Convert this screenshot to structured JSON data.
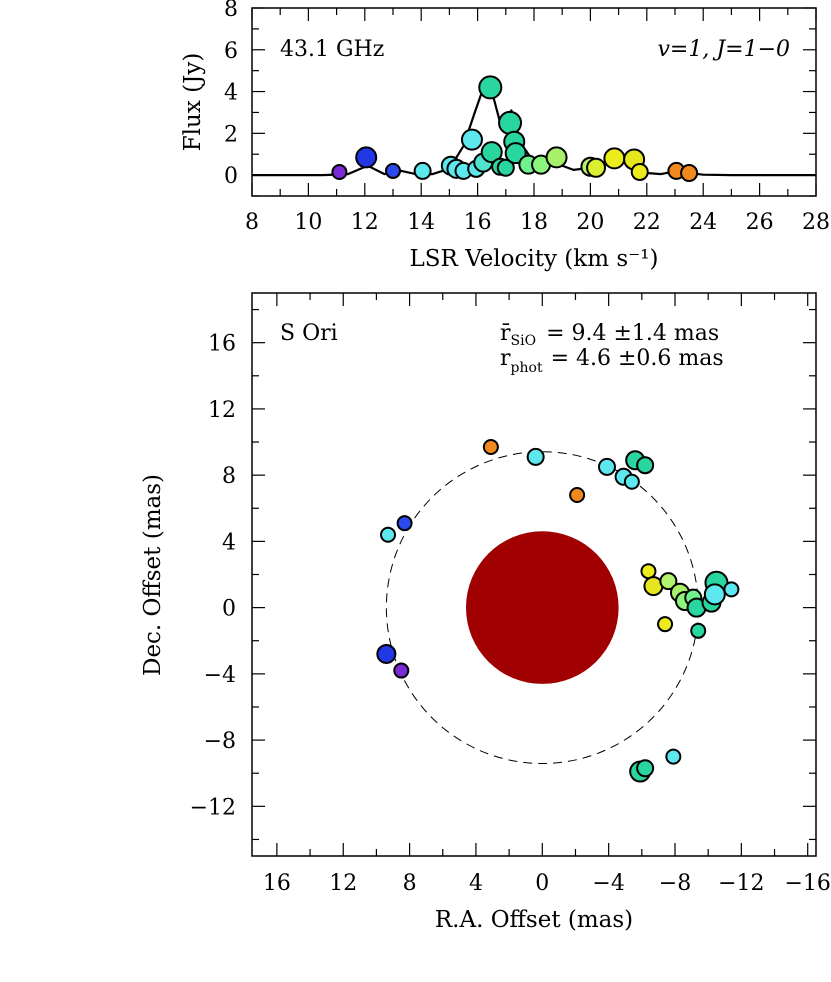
{
  "chart_data": [
    {
      "type": "line",
      "panel": "spectrum",
      "xlabel": "LSR Velocity (km s⁻¹)",
      "ylabel": "Flux (Jy)",
      "xlim": [
        8,
        28
      ],
      "ylim": [
        -1,
        8
      ],
      "xticks": [
        8,
        10,
        12,
        14,
        16,
        18,
        20,
        22,
        24,
        26,
        28
      ],
      "yticks": [
        0,
        2,
        4,
        6,
        8
      ],
      "annotation_left": "43.1 GHz",
      "annotation_right": "v=1, J=1−0",
      "spectrum": {
        "x": [
          8,
          10.5,
          11.4,
          12.1,
          12.7,
          13.3,
          13.8,
          14.4,
          15.0,
          15.5,
          15.9,
          16.2,
          16.45,
          16.8,
          17.0,
          17.2,
          17.5,
          17.9,
          18.3,
          18.8,
          19.4,
          20.0,
          20.6,
          21.1,
          21.5,
          22.0,
          22.5,
          23.1,
          23.5,
          24.0,
          25,
          28
        ],
        "y": [
          0,
          0,
          0.05,
          0.45,
          0.05,
          0.2,
          0.05,
          0.05,
          0.3,
          1.4,
          3.0,
          4.15,
          4.3,
          2.5,
          2.6,
          3.1,
          1.6,
          0.8,
          0.55,
          0.55,
          0.25,
          0.35,
          0.55,
          0.7,
          0.5,
          0.1,
          0.05,
          0.2,
          0.1,
          0.02,
          0,
          0
        ]
      },
      "points": [
        {
          "x": 11.1,
          "y": 0.15,
          "color": "#7a2bd6",
          "size": 7
        },
        {
          "x": 12.05,
          "y": 0.85,
          "color": "#2137e6",
          "size": 10
        },
        {
          "x": 13.0,
          "y": 0.2,
          "color": "#2b4aed",
          "size": 7
        },
        {
          "x": 14.05,
          "y": 0.2,
          "color": "#5ce8ee",
          "size": 8
        },
        {
          "x": 15.05,
          "y": 0.45,
          "color": "#5ce8ee",
          "size": 9
        },
        {
          "x": 15.25,
          "y": 0.3,
          "color": "#5ce8ee",
          "size": 9
        },
        {
          "x": 15.5,
          "y": 0.2,
          "color": "#5ce8ee",
          "size": 8
        },
        {
          "x": 15.8,
          "y": 1.7,
          "color": "#5ce8ee",
          "size": 10
        },
        {
          "x": 15.95,
          "y": 0.3,
          "color": "#5ce8ee",
          "size": 8
        },
        {
          "x": 16.2,
          "y": 0.6,
          "color": "#4fe3ce",
          "size": 9
        },
        {
          "x": 16.45,
          "y": 4.2,
          "color": "#2ad6a0",
          "size": 11
        },
        {
          "x": 16.5,
          "y": 1.1,
          "color": "#2ad6a0",
          "size": 10
        },
        {
          "x": 16.8,
          "y": 0.4,
          "color": "#2ad6a0",
          "size": 8
        },
        {
          "x": 17.0,
          "y": 0.35,
          "color": "#2ad6a0",
          "size": 8
        },
        {
          "x": 17.15,
          "y": 2.5,
          "color": "#2ad6a0",
          "size": 11
        },
        {
          "x": 17.3,
          "y": 1.6,
          "color": "#2ad6a0",
          "size": 10
        },
        {
          "x": 17.35,
          "y": 1.05,
          "color": "#2ad6a0",
          "size": 10
        },
        {
          "x": 17.8,
          "y": 0.5,
          "color": "#6ff28c",
          "size": 9
        },
        {
          "x": 18.25,
          "y": 0.5,
          "color": "#8cf57d",
          "size": 9
        },
        {
          "x": 18.8,
          "y": 0.85,
          "color": "#a7f06a",
          "size": 10
        },
        {
          "x": 20.0,
          "y": 0.4,
          "color": "#b3f46e",
          "size": 9
        },
        {
          "x": 20.2,
          "y": 0.35,
          "color": "#d9ef2f",
          "size": 9
        },
        {
          "x": 20.85,
          "y": 0.8,
          "color": "#ecec1c",
          "size": 10
        },
        {
          "x": 21.55,
          "y": 0.75,
          "color": "#e6e61f",
          "size": 10
        },
        {
          "x": 21.75,
          "y": 0.15,
          "color": "#ecec1c",
          "size": 8
        },
        {
          "x": 23.05,
          "y": 0.2,
          "color": "#f08a1e",
          "size": 8
        },
        {
          "x": 23.5,
          "y": 0.1,
          "color": "#f08a1e",
          "size": 8
        }
      ]
    },
    {
      "type": "scatter",
      "panel": "map",
      "xlabel": "R.A. Offset (mas)",
      "ylabel": "Dec. Offset (mas)",
      "xlim": [
        17.5,
        -16.5
      ],
      "ylim": [
        -15,
        19
      ],
      "xticks": [
        16,
        12,
        8,
        4,
        0,
        -4,
        -8,
        -12,
        -16
      ],
      "yticks": [
        16,
        12,
        8,
        4,
        0,
        -4,
        -8,
        -12
      ],
      "xtick_labels": [
        "16",
        "12",
        "8",
        "4",
        "0",
        "−4",
        "−8",
        "−12",
        "−16"
      ],
      "ytick_labels": [
        "16",
        "12",
        "8",
        "4",
        "0",
        "−4",
        "−8",
        "−12"
      ],
      "star_label": "S Ori",
      "ring_label": "r̄",
      "ring_subscript": "SiO",
      "ring_value": "=  9.4  ±1.4  mas",
      "phot_label": "r",
      "phot_subscript": "phot",
      "phot_value": "=  4.6  ±0.6  mas",
      "ring_radius": 9.4,
      "photosphere_radius": 4.6,
      "photosphere_color": "#a00000",
      "points": [
        {
          "x": 3.1,
          "y": 9.7,
          "color": "#f08a1e",
          "size": 7
        },
        {
          "x": 0.4,
          "y": 9.1,
          "color": "#5ce8ee",
          "size": 8
        },
        {
          "x": -3.9,
          "y": 8.5,
          "color": "#5ce8ee",
          "size": 8
        },
        {
          "x": -4.9,
          "y": 7.9,
          "color": "#5ce8ee",
          "size": 8
        },
        {
          "x": -5.4,
          "y": 7.6,
          "color": "#5ce8ee",
          "size": 7
        },
        {
          "x": -5.6,
          "y": 8.9,
          "color": "#2ad6a0",
          "size": 9
        },
        {
          "x": -6.2,
          "y": 8.6,
          "color": "#2ad6a0",
          "size": 8
        },
        {
          "x": -2.1,
          "y": 6.8,
          "color": "#f08a1e",
          "size": 7
        },
        {
          "x": 8.3,
          "y": 5.1,
          "color": "#2b4aed",
          "size": 7
        },
        {
          "x": 9.3,
          "y": 4.4,
          "color": "#5ce8ee",
          "size": 7
        },
        {
          "x": 9.4,
          "y": -2.8,
          "color": "#2137e6",
          "size": 9
        },
        {
          "x": 8.5,
          "y": -3.8,
          "color": "#7a2bd6",
          "size": 7
        },
        {
          "x": -6.4,
          "y": 2.2,
          "color": "#ecec1c",
          "size": 7
        },
        {
          "x": -6.7,
          "y": 1.3,
          "color": "#e6e61f",
          "size": 9
        },
        {
          "x": -7.6,
          "y": 1.6,
          "color": "#b3f46e",
          "size": 8
        },
        {
          "x": -8.3,
          "y": 0.9,
          "color": "#a7f06a",
          "size": 9
        },
        {
          "x": -8.6,
          "y": 0.4,
          "color": "#8cf57d",
          "size": 9
        },
        {
          "x": -9.1,
          "y": 0.6,
          "color": "#6ff28c",
          "size": 8
        },
        {
          "x": -9.3,
          "y": 0.0,
          "color": "#2ad6a0",
          "size": 9
        },
        {
          "x": -10.2,
          "y": 0.3,
          "color": "#2ad6a0",
          "size": 9
        },
        {
          "x": -10.5,
          "y": 1.5,
          "color": "#2ad6a0",
          "size": 11
        },
        {
          "x": -10.4,
          "y": 0.8,
          "color": "#5ce8ee",
          "size": 10
        },
        {
          "x": -11.4,
          "y": 1.1,
          "color": "#5ce8ee",
          "size": 7
        },
        {
          "x": -9.4,
          "y": -1.4,
          "color": "#2ad6a0",
          "size": 7
        },
        {
          "x": -7.4,
          "y": -1.0,
          "color": "#ecec1c",
          "size": 7
        },
        {
          "x": -5.9,
          "y": -9.9,
          "color": "#2ad6a0",
          "size": 10
        },
        {
          "x": -6.2,
          "y": -9.7,
          "color": "#2ad6a0",
          "size": 8
        },
        {
          "x": -7.9,
          "y": -9.0,
          "color": "#5ce8ee",
          "size": 7
        }
      ]
    }
  ]
}
